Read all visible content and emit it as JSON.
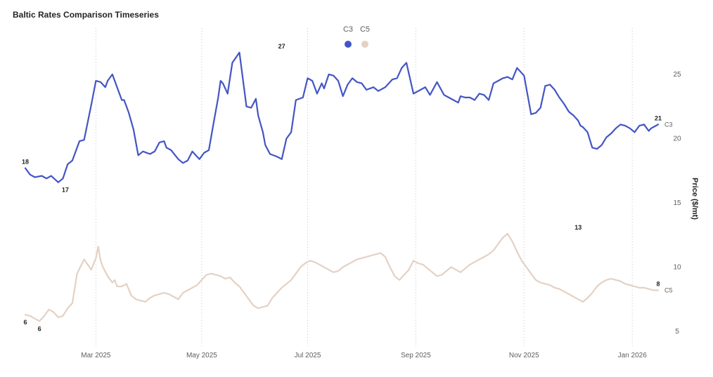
{
  "chart_data": {
    "type": "line",
    "title": "Baltic Rates Comparison Timeseries",
    "xlabel": "",
    "ylabel": "Price ($/mt)",
    "ylim": [
      3.8,
      28.6
    ],
    "y_ticks": [
      5,
      10,
      15,
      20,
      25
    ],
    "x_range": [
      0,
      269
    ],
    "x_ticks": [
      {
        "label": "Mar 2025",
        "x": 30
      },
      {
        "label": "May 2025",
        "x": 75
      },
      {
        "label": "Jul 2025",
        "x": 120
      },
      {
        "label": "Sep 2025",
        "x": 166
      },
      {
        "label": "Nov 2025",
        "x": 212
      },
      {
        "label": "Jan 2026",
        "x": 258
      }
    ],
    "legend": {
      "position": "top-center",
      "entries": [
        "C3",
        "C5"
      ]
    },
    "grid": "vertical-dotted",
    "series": [
      {
        "name": "C3",
        "color": "#4355c4",
        "x": [
          0,
          2,
          4,
          7,
          9,
          11,
          14,
          16,
          18,
          20,
          23,
          25,
          28,
          30,
          32,
          34,
          35,
          37,
          39,
          41,
          42,
          44,
          46,
          48,
          50,
          53,
          55,
          57,
          59,
          60,
          62,
          65,
          67,
          69,
          71,
          74,
          76,
          78,
          80,
          82,
          83,
          84,
          86,
          88,
          91,
          94,
          96,
          98,
          99,
          101,
          102,
          104,
          107,
          109,
          111,
          113,
          115,
          118,
          120,
          122,
          124,
          126,
          127,
          129,
          131,
          133,
          135,
          137,
          139,
          141,
          143,
          145,
          148,
          150,
          153,
          156,
          158,
          160,
          162,
          165,
          168,
          170,
          172,
          175,
          178,
          180,
          182,
          184,
          185,
          187,
          189,
          191,
          193,
          195,
          197,
          199,
          201,
          203,
          205,
          207,
          209,
          212,
          215,
          217,
          219,
          221,
          223,
          225,
          227,
          229,
          231,
          233,
          235,
          236,
          237,
          239,
          241,
          243,
          245,
          247,
          249,
          251,
          253,
          255,
          257,
          259,
          261,
          263,
          265,
          266,
          268,
          269
        ],
        "values": [
          17.7,
          17.2,
          17.0,
          17.1,
          16.9,
          17.1,
          16.6,
          16.9,
          18.0,
          18.3,
          19.8,
          19.9,
          22.6,
          24.5,
          24.4,
          24.0,
          24.5,
          25.0,
          24.0,
          23.0,
          23.0,
          22.0,
          20.7,
          18.7,
          19.0,
          18.8,
          19.0,
          19.7,
          19.8,
          19.3,
          19.1,
          18.4,
          18.1,
          18.3,
          19.0,
          18.4,
          18.9,
          19.1,
          21.2,
          23.2,
          24.5,
          24.3,
          23.5,
          25.9,
          26.7,
          22.5,
          22.4,
          23.1,
          21.8,
          20.5,
          19.5,
          18.8,
          18.6,
          18.4,
          20.0,
          20.5,
          23.0,
          23.2,
          24.7,
          24.5,
          23.5,
          24.3,
          23.9,
          25.0,
          24.9,
          24.5,
          23.3,
          24.2,
          24.7,
          24.4,
          24.3,
          23.8,
          24.0,
          23.7,
          24.0,
          24.6,
          24.7,
          25.5,
          25.9,
          23.5,
          23.8,
          24.0,
          23.4,
          24.4,
          23.4,
          23.2,
          23.0,
          22.8,
          23.3,
          23.2,
          23.2,
          23.0,
          23.5,
          23.4,
          23.0,
          24.3,
          24.5,
          24.7,
          24.8,
          24.6,
          25.5,
          24.9,
          21.9,
          22.0,
          22.4,
          24.1,
          24.2,
          23.8,
          23.2,
          22.7,
          22.1,
          21.8,
          21.4,
          21.0,
          20.9,
          20.5,
          19.3,
          19.2,
          19.5,
          20.1,
          20.4,
          20.8,
          21.1,
          21.0,
          20.8,
          20.5,
          21.0,
          21.1,
          20.6,
          20.8,
          21.0,
          21.1
        ],
        "end_label": "21",
        "data_labels": [
          {
            "x": 0,
            "y": 17.7,
            "text": "18",
            "pos": "above"
          },
          {
            "x": 17,
            "y": 16.6,
            "text": "17",
            "pos": "below"
          },
          {
            "x": 109,
            "y": 26.7,
            "text": "27",
            "pos": "above"
          },
          {
            "x": 269,
            "y": 21.1,
            "text": "21",
            "pos": "above"
          }
        ]
      },
      {
        "name": "C5",
        "color": "#e4d1c4",
        "x": [
          0,
          2,
          4,
          6,
          8,
          10,
          12,
          14,
          16,
          18,
          20,
          22,
          25,
          28,
          30,
          31,
          32,
          33,
          35,
          37,
          38,
          39,
          41,
          43,
          45,
          47,
          49,
          51,
          53,
          55,
          57,
          59,
          61,
          63,
          65,
          67,
          69,
          71,
          73,
          75,
          77,
          79,
          81,
          83,
          85,
          87,
          89,
          91,
          93,
          95,
          97,
          99,
          101,
          103,
          105,
          107,
          109,
          111,
          113,
          115,
          117,
          119,
          121,
          123,
          125,
          127,
          129,
          131,
          133,
          135,
          137,
          139,
          141,
          143,
          145,
          147,
          149,
          151,
          153,
          155,
          157,
          159,
          161,
          163,
          165,
          167,
          169,
          171,
          173,
          175,
          177,
          179,
          181,
          183,
          185,
          187,
          189,
          191,
          193,
          195,
          197,
          199,
          201,
          203,
          205,
          207,
          209,
          211,
          213,
          215,
          217,
          219,
          221,
          223,
          225,
          227,
          229,
          231,
          233,
          235,
          237,
          239,
          241,
          243,
          245,
          247,
          249,
          251,
          253,
          255,
          257,
          259,
          261,
          263,
          265,
          267,
          269
        ],
        "values": [
          6.3,
          6.2,
          6.0,
          5.8,
          6.2,
          6.7,
          6.5,
          6.1,
          6.2,
          6.8,
          7.2,
          9.5,
          10.6,
          9.8,
          10.7,
          11.6,
          10.5,
          10.0,
          9.3,
          8.8,
          9.0,
          8.5,
          8.5,
          8.7,
          7.8,
          7.5,
          7.4,
          7.3,
          7.6,
          7.8,
          7.9,
          8.0,
          7.9,
          7.7,
          7.5,
          8.0,
          8.2,
          8.4,
          8.6,
          9.0,
          9.4,
          9.5,
          9.4,
          9.3,
          9.1,
          9.2,
          8.8,
          8.5,
          8.0,
          7.5,
          7.0,
          6.8,
          6.9,
          7.0,
          7.6,
          8.0,
          8.4,
          8.7,
          9.0,
          9.5,
          10.0,
          10.3,
          10.5,
          10.4,
          10.2,
          10.0,
          9.8,
          9.6,
          9.7,
          10.0,
          10.2,
          10.4,
          10.6,
          10.7,
          10.8,
          10.9,
          11.0,
          11.1,
          10.8,
          10.0,
          9.3,
          9.0,
          9.4,
          9.8,
          10.5,
          10.3,
          10.2,
          9.9,
          9.6,
          9.3,
          9.4,
          9.7,
          10.0,
          9.8,
          9.6,
          9.9,
          10.2,
          10.4,
          10.6,
          10.8,
          11.0,
          11.3,
          11.8,
          12.3,
          12.6,
          12.0,
          11.2,
          10.5,
          10.0,
          9.5,
          9.0,
          8.8,
          8.7,
          8.6,
          8.4,
          8.3,
          8.1,
          7.9,
          7.7,
          7.5,
          7.3,
          7.6,
          8.0,
          8.5,
          8.8,
          9.0,
          9.1,
          9.0,
          8.9,
          8.7,
          8.6,
          8.5,
          8.4,
          8.4,
          8.3,
          8.2,
          8.2
        ],
        "end_label": "8",
        "data_labels": [
          {
            "x": 0,
            "y": 6.3,
            "text": "6",
            "pos": "below"
          },
          {
            "x": 6,
            "y": 5.8,
            "text": "6",
            "pos": "below"
          },
          {
            "x": 235,
            "y": 12.6,
            "text": "13",
            "pos": "above"
          },
          {
            "x": 269,
            "y": 8.2,
            "text": "8",
            "pos": "above"
          }
        ]
      }
    ]
  }
}
